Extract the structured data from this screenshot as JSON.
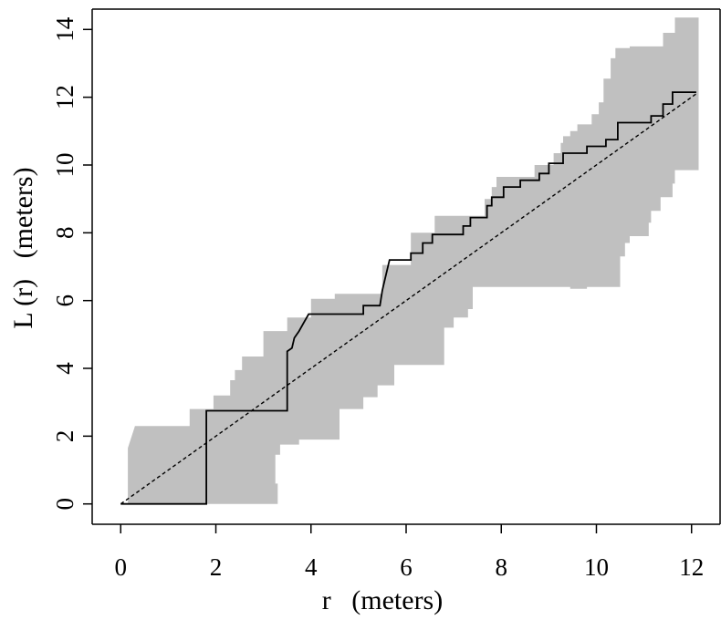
{
  "chart_data": {
    "type": "line",
    "xlabel": "r   (meters)",
    "ylabel": "L (r)   (meters)",
    "xlim": [
      -0.6,
      12.6
    ],
    "ylim": [
      -0.6,
      14.6
    ],
    "xticks": [
      0,
      2,
      4,
      6,
      8,
      10,
      12
    ],
    "yticks": [
      0,
      2,
      4,
      6,
      8,
      10,
      12,
      14
    ],
    "grid": false,
    "legend": "none",
    "colors": {
      "envelope": "#c0c0c0",
      "observed": "#000000",
      "expected": "#000000"
    },
    "series": [
      {
        "kind": "step",
        "points": [
          [
            0.0,
            0.0
          ],
          [
            1.8,
            0.0
          ],
          [
            1.8,
            2.75
          ],
          [
            3.5,
            2.75
          ],
          [
            3.5,
            4.5
          ],
          [
            3.6,
            4.6
          ],
          [
            3.65,
            4.9
          ],
          [
            3.75,
            5.1
          ],
          [
            3.85,
            5.35
          ],
          [
            3.95,
            5.6
          ],
          [
            5.1,
            5.6
          ],
          [
            5.1,
            5.85
          ],
          [
            5.45,
            5.85
          ],
          [
            5.5,
            6.3
          ],
          [
            5.55,
            6.6
          ],
          [
            5.65,
            7.2
          ],
          [
            6.1,
            7.2
          ],
          [
            6.1,
            7.4
          ],
          [
            6.35,
            7.4
          ],
          [
            6.35,
            7.7
          ],
          [
            6.55,
            7.7
          ],
          [
            6.55,
            7.95
          ],
          [
            7.2,
            7.95
          ],
          [
            7.2,
            8.2
          ],
          [
            7.35,
            8.2
          ],
          [
            7.35,
            8.45
          ],
          [
            7.7,
            8.45
          ],
          [
            7.7,
            8.8
          ],
          [
            7.8,
            8.8
          ],
          [
            7.8,
            9.05
          ],
          [
            8.05,
            9.05
          ],
          [
            8.05,
            9.35
          ],
          [
            8.4,
            9.35
          ],
          [
            8.4,
            9.55
          ],
          [
            8.8,
            9.55
          ],
          [
            8.8,
            9.75
          ],
          [
            9.0,
            9.75
          ],
          [
            9.0,
            10.05
          ],
          [
            9.3,
            10.05
          ],
          [
            9.3,
            10.35
          ],
          [
            9.8,
            10.35
          ],
          [
            9.8,
            10.55
          ],
          [
            10.2,
            10.55
          ],
          [
            10.2,
            10.75
          ],
          [
            10.45,
            10.75
          ],
          [
            10.45,
            11.25
          ],
          [
            11.15,
            11.25
          ],
          [
            11.15,
            11.45
          ],
          [
            11.4,
            11.45
          ],
          [
            11.4,
            11.8
          ],
          [
            11.6,
            11.8
          ],
          [
            11.6,
            12.15
          ],
          [
            12.1,
            12.15
          ]
        ]
      },
      {
        "kind": "dashed",
        "points": [
          [
            0.0,
            0.0
          ],
          [
            12.1,
            12.1
          ]
        ]
      }
    ],
    "envelope": {
      "upper": [
        [
          0.15,
          1.65
        ],
        [
          0.3,
          2.3
        ],
        [
          1.45,
          2.3
        ],
        [
          1.45,
          2.8
        ],
        [
          1.95,
          2.8
        ],
        [
          1.95,
          3.2
        ],
        [
          2.3,
          3.2
        ],
        [
          2.3,
          3.65
        ],
        [
          2.4,
          3.65
        ],
        [
          2.4,
          3.95
        ],
        [
          2.55,
          3.95
        ],
        [
          2.55,
          4.35
        ],
        [
          3.0,
          4.35
        ],
        [
          3.0,
          5.1
        ],
        [
          3.5,
          5.1
        ],
        [
          3.5,
          5.5
        ],
        [
          4.0,
          5.5
        ],
        [
          4.0,
          6.05
        ],
        [
          4.5,
          6.05
        ],
        [
          4.5,
          6.2
        ],
        [
          5.5,
          6.2
        ],
        [
          5.5,
          7.05
        ],
        [
          6.1,
          7.05
        ],
        [
          6.1,
          8.0
        ],
        [
          6.6,
          8.0
        ],
        [
          6.6,
          8.5
        ],
        [
          7.65,
          8.5
        ],
        [
          7.65,
          9.0
        ],
        [
          7.8,
          9.0
        ],
        [
          7.8,
          9.35
        ],
        [
          7.9,
          9.35
        ],
        [
          7.9,
          9.65
        ],
        [
          8.7,
          9.65
        ],
        [
          8.7,
          10.0
        ],
        [
          9.1,
          10.0
        ],
        [
          9.1,
          10.35
        ],
        [
          9.25,
          10.35
        ],
        [
          9.25,
          10.65
        ],
        [
          9.3,
          10.65
        ],
        [
          9.3,
          10.85
        ],
        [
          9.45,
          10.85
        ],
        [
          9.45,
          11.0
        ],
        [
          9.6,
          11.0
        ],
        [
          9.6,
          11.2
        ],
        [
          9.9,
          11.2
        ],
        [
          9.9,
          11.5
        ],
        [
          10.05,
          11.5
        ],
        [
          10.05,
          11.85
        ],
        [
          10.15,
          11.85
        ],
        [
          10.15,
          12.55
        ],
        [
          10.3,
          12.55
        ],
        [
          10.3,
          13.15
        ],
        [
          10.4,
          13.15
        ],
        [
          10.4,
          13.45
        ],
        [
          10.7,
          13.45
        ],
        [
          10.7,
          13.5
        ],
        [
          11.4,
          13.5
        ],
        [
          11.4,
          13.9
        ],
        [
          11.65,
          13.9
        ],
        [
          11.65,
          14.35
        ],
        [
          12.15,
          14.35
        ]
      ],
      "lower": [
        [
          0.15,
          0.0
        ],
        [
          3.3,
          0.0
        ],
        [
          3.3,
          0.6
        ],
        [
          3.25,
          0.6
        ],
        [
          3.25,
          1.45
        ],
        [
          3.35,
          1.45
        ],
        [
          3.35,
          1.75
        ],
        [
          3.75,
          1.75
        ],
        [
          3.75,
          1.9
        ],
        [
          4.6,
          1.9
        ],
        [
          4.6,
          2.8
        ],
        [
          5.1,
          2.8
        ],
        [
          5.1,
          3.15
        ],
        [
          5.4,
          3.15
        ],
        [
          5.4,
          3.5
        ],
        [
          5.75,
          3.5
        ],
        [
          5.75,
          4.1
        ],
        [
          6.8,
          4.1
        ],
        [
          6.8,
          5.2
        ],
        [
          7.0,
          5.2
        ],
        [
          7.0,
          5.5
        ],
        [
          7.3,
          5.5
        ],
        [
          7.3,
          5.75
        ],
        [
          7.4,
          5.75
        ],
        [
          7.4,
          6.4
        ],
        [
          9.45,
          6.4
        ],
        [
          9.45,
          6.35
        ],
        [
          9.8,
          6.35
        ],
        [
          9.8,
          6.4
        ],
        [
          10.5,
          6.4
        ],
        [
          10.5,
          7.3
        ],
        [
          10.6,
          7.3
        ],
        [
          10.6,
          7.7
        ],
        [
          10.7,
          7.7
        ],
        [
          10.7,
          7.9
        ],
        [
          11.1,
          7.9
        ],
        [
          11.1,
          8.3
        ],
        [
          11.15,
          8.3
        ],
        [
          11.15,
          8.65
        ],
        [
          11.35,
          8.65
        ],
        [
          11.35,
          9.05
        ],
        [
          11.6,
          9.05
        ],
        [
          11.6,
          9.45
        ],
        [
          11.65,
          9.45
        ],
        [
          11.65,
          9.85
        ],
        [
          12.15,
          9.85
        ]
      ]
    }
  }
}
